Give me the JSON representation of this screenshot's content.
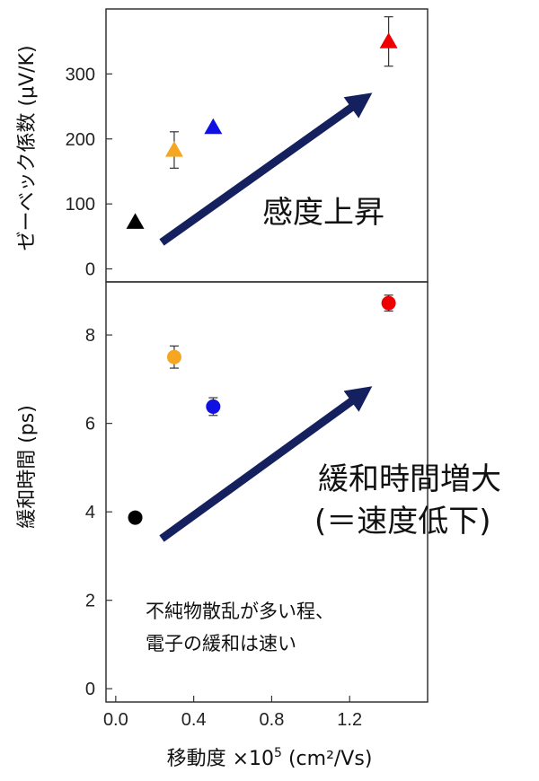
{
  "chart_data": [
    {
      "type": "scatter",
      "ylabel": "ゼーベック係数 (μV/K)",
      "xlim": [
        -0.05,
        1.6
      ],
      "ylim": [
        -20,
        400
      ],
      "yticks": [
        0,
        100,
        200,
        300
      ],
      "marker": "triangle",
      "points": [
        {
          "x": 0.1,
          "y": 72,
          "err": null,
          "color": "#000000"
        },
        {
          "x": 0.3,
          "y": 183,
          "err": 28,
          "color": "#f5a623"
        },
        {
          "x": 0.5,
          "y": 218,
          "err": null,
          "color": "#1010e0"
        },
        {
          "x": 1.4,
          "y": 350,
          "err": 38,
          "color": "#ee0000"
        }
      ],
      "annotation": "感度上昇",
      "arrow_color": "#14215e"
    },
    {
      "type": "scatter",
      "ylabel": "緩和時間 (ps)",
      "xlabel": "移動度",
      "xlabel_suffix": "(cm²/Vs)",
      "xlabel_multiplier": "×10",
      "xlabel_exponent": "5",
      "xlim": [
        -0.05,
        1.6
      ],
      "ylim": [
        -0.3,
        9.2
      ],
      "xticks": [
        "0.0",
        "0.4",
        "0.8",
        "1.2"
      ],
      "xtick_values": [
        0.0,
        0.4,
        0.8,
        1.2
      ],
      "yticks": [
        0,
        2,
        4,
        6,
        8
      ],
      "marker": "circle",
      "points": [
        {
          "x": 0.1,
          "y": 3.87,
          "err": null,
          "color": "#000000"
        },
        {
          "x": 0.3,
          "y": 7.5,
          "err": 0.25,
          "color": "#f5a623"
        },
        {
          "x": 0.5,
          "y": 6.38,
          "err": 0.2,
          "color": "#1010e0"
        },
        {
          "x": 1.4,
          "y": 8.72,
          "err": 0.18,
          "color": "#ee0000"
        }
      ],
      "annotation_line1": "緩和時間増大",
      "annotation_line2": "(＝速度低下)",
      "note_line1": "不純物散乱が多い程、",
      "note_line2": "電子の緩和は速い",
      "arrow_color": "#14215e"
    }
  ]
}
